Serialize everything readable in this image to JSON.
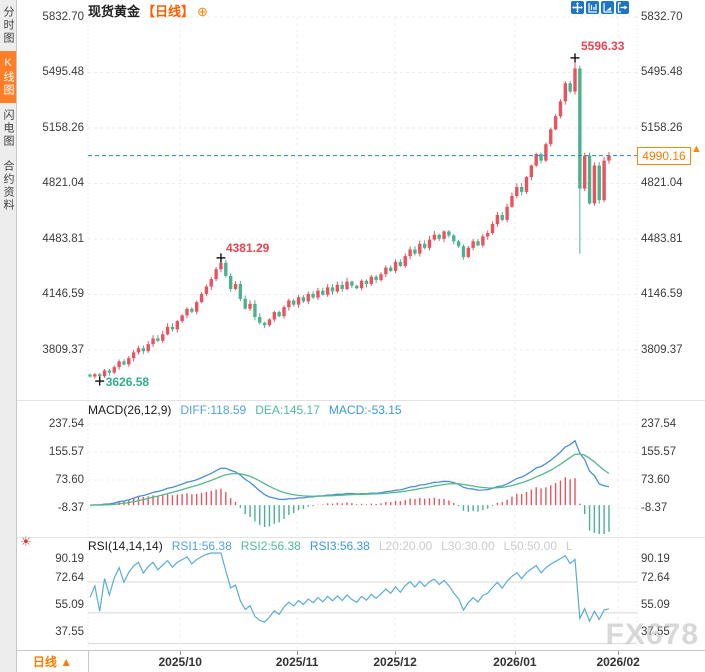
{
  "sidebar": {
    "tabs": [
      {
        "label": "分时图",
        "active": false
      },
      {
        "label": "K线图",
        "active": true
      },
      {
        "label": "闪电图",
        "active": false
      },
      {
        "label": "合约资料",
        "active": false
      }
    ]
  },
  "header": {
    "symbol": "现货黄金",
    "period_tag": "【日线】",
    "add_icon": "⊕"
  },
  "toolbar": {
    "icons": [
      "pan-crosshair",
      "price-axis-scale",
      "time-axis-scale",
      "pop-out"
    ]
  },
  "main_chart": {
    "current_price": "4990.16",
    "current_price_arrow": "▲",
    "annotation_high": "5596.33",
    "annotation_swing_high": "4381.29",
    "annotation_low": "3626.58"
  },
  "macd_panel": {
    "title": "MACD(26,12,9)",
    "diff_label": "DIFF:118.59",
    "dea_label": "DEA:145.17",
    "macd_label": "MACD:-53.15"
  },
  "rsi_panel": {
    "title": "RSI(14,14,14)",
    "rsi1_label": "RSI1:56.38",
    "rsi2_label": "RSI2:56.38",
    "rsi3_label": "RSI3:56.38",
    "l20_label": "L20:20.00",
    "l30_label": "L30:30.00",
    "l50_label": "L50:50.00",
    "l_truncated": "L"
  },
  "bottom_bar": {
    "period_button": "日线 ▲"
  },
  "watermark": "FX678",
  "colors": {
    "up_candle": "#e85360",
    "down_candle": "#4bb28c",
    "accent_orange": "#ff7a00",
    "current_price_line": "#2287d8",
    "diff_line": "#4a8fd8",
    "dea_line": "#55b88a",
    "rsi_line": "#59acd8",
    "toolbar_icon_bg": "#1c76c5",
    "active_tab_bg": "#ff7e27"
  },
  "chart_data": {
    "type": "candlestick",
    "title": "现货黄金 日线 (Spot Gold, daily)",
    "x_tick_labels": [
      "2025/10",
      "2025/11",
      "2025/12",
      "2026/01",
      "2026/02"
    ],
    "x_tick_days": [
      18.6,
      42.7,
      62.9,
      87.6,
      108.9
    ],
    "price_axis_ticks": [
      5832.7,
      5495.48,
      5158.26,
      4821.04,
      4483.81,
      4146.59,
      3809.37
    ],
    "macd_axis_ticks": [
      237.54,
      155.57,
      73.6,
      -8.37
    ],
    "rsi_axis_ticks": [
      90.19,
      72.64,
      55.09,
      37.55
    ],
    "rsi_gridline_levels": [
      70,
      50,
      30
    ],
    "current_price": 4990.16,
    "annotated_high": 5596.33,
    "annotated_swing_high": 4381.29,
    "annotated_low": 3626.58,
    "high_day": 100,
    "swing_high_day": 27,
    "low_day": 2,
    "indicator_values": {
      "diff": 118.59,
      "dea": 145.17,
      "macd": -53.15,
      "rsi1": 56.38,
      "rsi2": 56.38,
      "rsi3": 56.38,
      "l20": 20.0,
      "l30": 30.0,
      "l50": 50.0
    },
    "closes": [
      3648,
      3662,
      3650,
      3685,
      3672,
      3705,
      3740,
      3722,
      3760,
      3795,
      3820,
      3802,
      3845,
      3880,
      3865,
      3905,
      3950,
      3935,
      3985,
      4020,
      4060,
      4042,
      4100,
      4150,
      4195,
      4240,
      4300,
      4340,
      4260,
      4180,
      4210,
      4120,
      4060,
      4090,
      4010,
      3975,
      3960,
      3995,
      4040,
      4015,
      4070,
      4110,
      4085,
      4130,
      4105,
      4150,
      4128,
      4170,
      4145,
      4190,
      4165,
      4205,
      4180,
      4225,
      4200,
      4185,
      4230,
      4210,
      4255,
      4235,
      4270,
      4310,
      4290,
      4345,
      4320,
      4380,
      4420,
      4395,
      4455,
      4430,
      4480,
      4510,
      4485,
      4530,
      4505,
      4470,
      4440,
      4375,
      4430,
      4470,
      4445,
      4500,
      4520,
      4575,
      4630,
      4600,
      4680,
      4745,
      4800,
      4770,
      4860,
      4930,
      5000,
      4960,
      5060,
      5150,
      5230,
      5320,
      5430,
      5380,
      5520,
      4790,
      4990,
      4700,
      4930,
      4720,
      4960,
      4990.16
    ],
    "special_candles": {
      "2": {
        "low": 3626.58
      },
      "27": {
        "high": 4381.29
      },
      "100": {
        "high": 5596.33
      },
      "101": {
        "low": 4395
      }
    }
  }
}
